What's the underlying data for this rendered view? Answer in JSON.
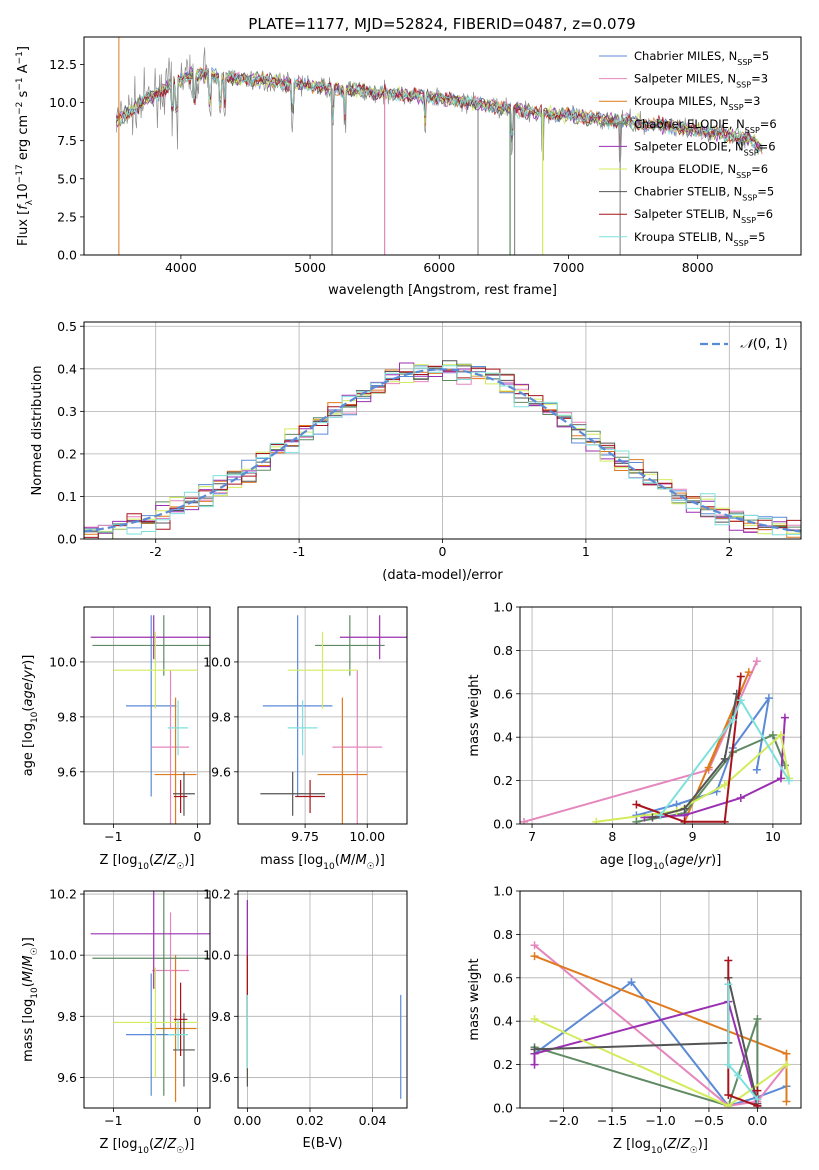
{
  "title": "PLATE=1177, MJD=52824, FIBERID=0487, z=0.079",
  "colors": {
    "Chabrier MILES": "#5b8bd6",
    "Salpeter MILES": "#e586bd",
    "Kroupa MILES": "#e07a1f",
    "Chabrier ELODIE": "#5f8a63",
    "Salpeter ELODIE": "#9b2fb2",
    "Kroupa ELODIE": "#d2ec5c",
    "Chabrier STELIB": "#555555",
    "Salpeter STELIB": "#a8141c",
    "Kroupa STELIB": "#7ee0dd"
  },
  "chart_data": [
    {
      "id": "spectrum",
      "type": "line",
      "xlabel": "wavelength [Angstrom, rest frame]",
      "ylabel": "Flux [f_λ 10^-17 erg cm^-2 s^-1 A^-1]",
      "xlim": [
        3250,
        8800
      ],
      "ylim": [
        0,
        14.3
      ],
      "xticks": [
        4000,
        5000,
        6000,
        7000,
        8000
      ],
      "yticks": [
        0.0,
        2.5,
        5.0,
        7.5,
        10.0,
        12.5
      ],
      "ytick_labels": [
        "0.0",
        "2.5",
        "5.0",
        "7.5",
        "10.0",
        "12.5"
      ],
      "legend_position": "top-right",
      "legend": [
        {
          "base": "Chabrier MILES, N",
          "sub": "SSP",
          "tail": "=5",
          "color_key": "Chabrier MILES"
        },
        {
          "base": "Salpeter MILES, N",
          "sub": "SSP",
          "tail": "=3",
          "color_key": "Salpeter MILES"
        },
        {
          "base": "Kroupa MILES, N",
          "sub": "SSP",
          "tail": "=3",
          "color_key": "Kroupa MILES"
        },
        {
          "base": "Chabrier ELODIE, N",
          "sub": "SSP",
          "tail": "=6",
          "color_key": "Chabrier ELODIE"
        },
        {
          "base": "Salpeter ELODIE, N",
          "sub": "SSP",
          "tail": "=6",
          "color_key": "Salpeter ELODIE"
        },
        {
          "base": "Kroupa ELODIE, N",
          "sub": "SSP",
          "tail": "=6",
          "color_key": "Kroupa ELODIE"
        },
        {
          "base": "Chabrier STELIB, N",
          "sub": "SSP",
          "tail": "=5",
          "color_key": "Chabrier STELIB"
        },
        {
          "base": "Salpeter STELIB, N",
          "sub": "SSP",
          "tail": "=6",
          "color_key": "Salpeter STELIB"
        },
        {
          "base": "Kroupa STELIB, N",
          "sub": "SSP",
          "tail": "=5",
          "color_key": "Kroupa STELIB"
        }
      ],
      "continuum": [
        [
          3500,
          8.8
        ],
        [
          3700,
          10.0
        ],
        [
          3900,
          11.0
        ],
        [
          4100,
          11.9
        ],
        [
          4400,
          11.6
        ],
        [
          4800,
          11.3
        ],
        [
          5200,
          10.9
        ],
        [
          5600,
          10.6
        ],
        [
          6000,
          10.3
        ],
        [
          6400,
          9.8
        ],
        [
          6800,
          9.3
        ],
        [
          7200,
          9.0
        ],
        [
          7600,
          8.6
        ],
        [
          8000,
          8.2
        ],
        [
          8400,
          7.6
        ],
        [
          8500,
          7.0
        ]
      ],
      "absorption_lines": [
        3934,
        3969,
        4102,
        4227,
        4305,
        4340,
        4861,
        5175,
        5270,
        5890,
        6563,
        6800,
        7400
      ],
      "spike_lines": [
        5170,
        5577,
        6300,
        6548,
        6583,
        6800,
        7400
      ]
    },
    {
      "id": "residuals",
      "type": "histogram",
      "xlabel": "(data-model)/error",
      "ylabel": "Normed distribution",
      "xlim": [
        -2.5,
        2.5
      ],
      "ylim": [
        0,
        0.51
      ],
      "xticks": [
        -2,
        -1,
        0,
        1,
        2
      ],
      "yticks": [
        0.0,
        0.1,
        0.2,
        0.3,
        0.4,
        0.5
      ],
      "ytick_labels": [
        "0.0",
        "0.1",
        "0.2",
        "0.3",
        "0.4",
        "0.5"
      ],
      "bin_width": 0.1,
      "reference_curve": "gaussian mean 0 sigma 1",
      "legend_label_math": "N(0, 1)",
      "legend_position": "top-right"
    },
    {
      "id": "age-vs-Z",
      "type": "errorbar",
      "xlabel": "Z [log10(Z/Z☉)]",
      "ylabel": "age  [log10(age/yr)]",
      "xlim": [
        -1.35,
        0.15
      ],
      "ylim": [
        9.41,
        10.2
      ],
      "xticks": [
        -1,
        0
      ],
      "xtick_labels": [
        "−1",
        "0"
      ],
      "yticks": [
        9.6,
        9.8,
        10.0
      ],
      "ytick_labels": [
        "9.6",
        "9.8",
        "10.0"
      ],
      "points": [
        {
          "x": -0.55,
          "xerr": 0.3,
          "y": 9.84,
          "yerr": 0.33,
          "color_key": "Chabrier MILES"
        },
        {
          "x": -0.32,
          "xerr": 0.22,
          "y": 9.69,
          "yerr": 0.28,
          "color_key": "Salpeter MILES"
        },
        {
          "x": -0.26,
          "xerr": 0.25,
          "y": 9.59,
          "yerr": 0.28,
          "color_key": "Kroupa MILES"
        },
        {
          "x": -0.4,
          "xerr": 0.85,
          "y": 10.06,
          "yerr": 0.11,
          "color_key": "Chabrier ELODIE"
        },
        {
          "x": -0.52,
          "xerr": 0.75,
          "y": 10.09,
          "yerr": 0.08,
          "color_key": "Salpeter ELODIE"
        },
        {
          "x": -0.5,
          "xerr": 0.5,
          "y": 9.97,
          "yerr": 0.14,
          "color_key": "Kroupa ELODIE"
        },
        {
          "x": -0.16,
          "xerr": 0.13,
          "y": 9.52,
          "yerr": 0.08,
          "color_key": "Chabrier STELIB"
        },
        {
          "x": -0.2,
          "xerr": 0.08,
          "y": 9.51,
          "yerr": 0.06,
          "color_key": "Salpeter STELIB"
        },
        {
          "x": -0.23,
          "xerr": 0.12,
          "y": 9.76,
          "yerr": 0.1,
          "color_key": "Kroupa STELIB"
        }
      ]
    },
    {
      "id": "age-vs-mass",
      "type": "errorbar",
      "xlabel": "mass [log10(M/M☉)]",
      "ylabel": "",
      "xlim": [
        9.48,
        10.16
      ],
      "ylim": [
        9.41,
        10.2
      ],
      "xticks": [
        9.75,
        10.0
      ],
      "xtick_labels": [
        "9.75",
        "10.00"
      ],
      "yticks": [
        9.6,
        9.8,
        10.0
      ],
      "ytick_labels": [
        "9.6",
        "9.8",
        "10.0"
      ],
      "points": [
        {
          "x": 9.72,
          "xerr": 0.14,
          "y": 9.84,
          "yerr": 0.33,
          "color_key": "Chabrier MILES"
        },
        {
          "x": 9.96,
          "xerr": 0.1,
          "y": 9.69,
          "yerr": 0.28,
          "color_key": "Salpeter MILES"
        },
        {
          "x": 9.9,
          "xerr": 0.1,
          "y": 9.59,
          "yerr": 0.28,
          "color_key": "Kroupa MILES"
        },
        {
          "x": 9.93,
          "xerr": 0.14,
          "y": 10.06,
          "yerr": 0.11,
          "color_key": "Chabrier ELODIE"
        },
        {
          "x": 10.05,
          "xerr": 0.16,
          "y": 10.09,
          "yerr": 0.08,
          "color_key": "Salpeter ELODIE"
        },
        {
          "x": 9.82,
          "xerr": 0.14,
          "y": 9.97,
          "yerr": 0.14,
          "color_key": "Kroupa ELODIE"
        },
        {
          "x": 9.7,
          "xerr": 0.13,
          "y": 9.52,
          "yerr": 0.08,
          "color_key": "Chabrier STELIB"
        },
        {
          "x": 9.77,
          "xerr": 0.06,
          "y": 9.51,
          "yerr": 0.06,
          "color_key": "Salpeter STELIB"
        },
        {
          "x": 9.74,
          "xerr": 0.06,
          "y": 9.76,
          "yerr": 0.1,
          "color_key": "Kroupa STELIB"
        }
      ]
    },
    {
      "id": "weight-vs-age",
      "type": "line",
      "xlabel": "age  [log10(age/yr)]",
      "ylabel": "mass weight",
      "xlim": [
        6.85,
        10.35
      ],
      "ylim": [
        0,
        1.0
      ],
      "xticks": [
        7,
        8,
        9,
        10
      ],
      "xtick_labels": [
        "7",
        "8",
        "9",
        "10"
      ],
      "yticks": [
        0.0,
        0.2,
        0.4,
        0.6,
        0.8,
        1.0
      ],
      "ytick_labels": [
        "0.0",
        "0.2",
        "0.4",
        "0.6",
        "0.8",
        "1.0"
      ],
      "series": [
        {
          "color_key": "Chabrier MILES",
          "points": [
            [
              8.3,
              0.04
            ],
            [
              8.8,
              0.09
            ],
            [
              9.3,
              0.15
            ],
            [
              9.5,
              0.35
            ],
            [
              9.95,
              0.58
            ],
            [
              9.8,
              0.25
            ]
          ]
        },
        {
          "color_key": "Salpeter MILES",
          "points": [
            [
              6.9,
              0.01
            ],
            [
              9.2,
              0.25
            ],
            [
              9.8,
              0.75
            ]
          ]
        },
        {
          "color_key": "Kroupa MILES",
          "points": [
            [
              9.2,
              0.26
            ],
            [
              9.7,
              0.7
            ],
            [
              8.9,
              0.01
            ]
          ]
        },
        {
          "color_key": "Chabrier ELODIE",
          "points": [
            [
              8.3,
              0.01
            ],
            [
              8.9,
              0.05
            ],
            [
              9.5,
              0.33
            ],
            [
              10.0,
              0.41
            ],
            [
              10.15,
              0.27
            ]
          ]
        },
        {
          "color_key": "Salpeter ELODIE",
          "points": [
            [
              8.4,
              0.03
            ],
            [
              8.9,
              0.04
            ],
            [
              9.6,
              0.12
            ],
            [
              10.1,
              0.21
            ],
            [
              10.15,
              0.49
            ]
          ]
        },
        {
          "color_key": "Kroupa ELODIE",
          "points": [
            [
              7.8,
              0.01
            ],
            [
              8.8,
              0.06
            ],
            [
              9.4,
              0.18
            ],
            [
              10.1,
              0.41
            ],
            [
              10.2,
              0.21
            ]
          ]
        },
        {
          "color_key": "Chabrier STELIB",
          "points": [
            [
              8.5,
              0.03
            ],
            [
              8.9,
              0.07
            ],
            [
              9.4,
              0.3
            ],
            [
              9.55,
              0.6
            ]
          ]
        },
        {
          "color_key": "Salpeter STELIB",
          "points": [
            [
              8.3,
              0.09
            ],
            [
              8.9,
              0.01
            ],
            [
              9.4,
              0.01
            ],
            [
              9.6,
              0.68
            ]
          ]
        },
        {
          "color_key": "Kroupa STELIB",
          "points": [
            [
              8.6,
              0.04
            ],
            [
              9.5,
              0.48
            ],
            [
              9.6,
              0.57
            ],
            [
              10.2,
              0.2
            ]
          ]
        }
      ]
    },
    {
      "id": "mass-vs-Z",
      "type": "errorbar",
      "xlabel": "Z [log10(Z/Z☉)]",
      "ylabel": "mass [log10(M/M☉)]",
      "xlim": [
        -1.35,
        0.15
      ],
      "ylim": [
        9.5,
        10.21
      ],
      "xticks": [
        -1,
        0
      ],
      "xtick_labels": [
        "−1",
        "0"
      ],
      "yticks": [
        9.6,
        9.8,
        10.0,
        10.2
      ],
      "ytick_labels": [
        "9.6",
        "9.8",
        "10.0",
        "10.2"
      ],
      "points": [
        {
          "x": -0.55,
          "xerr": 0.3,
          "y": 9.74,
          "yerr": 0.2,
          "color_key": "Chabrier MILES"
        },
        {
          "x": -0.32,
          "xerr": 0.22,
          "y": 9.95,
          "yerr": 0.19,
          "color_key": "Salpeter MILES"
        },
        {
          "x": -0.26,
          "xerr": 0.25,
          "y": 9.76,
          "yerr": 0.24,
          "color_key": "Kroupa MILES"
        },
        {
          "x": -0.4,
          "xerr": 0.85,
          "y": 9.99,
          "yerr": 0.45,
          "color_key": "Chabrier ELODIE"
        },
        {
          "x": -0.52,
          "xerr": 0.75,
          "y": 10.07,
          "yerr": 0.18,
          "color_key": "Salpeter ELODIE"
        },
        {
          "x": -0.5,
          "xerr": 0.5,
          "y": 9.78,
          "yerr": 0.18,
          "color_key": "Kroupa ELODIE"
        },
        {
          "x": -0.16,
          "xerr": 0.13,
          "y": 9.69,
          "yerr": 0.12,
          "color_key": "Chabrier STELIB"
        },
        {
          "x": -0.2,
          "xerr": 0.08,
          "y": 9.79,
          "yerr": 0.12,
          "color_key": "Salpeter STELIB"
        },
        {
          "x": -0.23,
          "xerr": 0.12,
          "y": 9.74,
          "yerr": 0.05,
          "color_key": "Kroupa STELIB"
        }
      ]
    },
    {
      "id": "mass-vs-ebv",
      "type": "errorbar",
      "xlabel": "E(B-V)",
      "ylabel": "",
      "xlim": [
        -0.003,
        0.051
      ],
      "ylim": [
        9.5,
        10.21
      ],
      "xticks": [
        0.0,
        0.02,
        0.04
      ],
      "xtick_labels": [
        "0.00",
        "0.02",
        "0.04"
      ],
      "yticks": [
        9.6,
        9.8,
        10.0,
        10.2
      ],
      "ytick_labels": [
        "9.6",
        "9.8",
        "10.0",
        "10.2"
      ],
      "points": [
        {
          "x": 0.049,
          "xerr": 0,
          "y": 9.7,
          "yerr": 0.17,
          "color_key": "Chabrier MILES"
        },
        {
          "x": 0.0,
          "xerr": 0,
          "y": 9.9,
          "yerr": 0.16,
          "color_key": "Salpeter MILES"
        },
        {
          "x": 0.0,
          "xerr": 0,
          "y": 9.82,
          "yerr": 0.2,
          "color_key": "Kroupa MILES"
        },
        {
          "x": 0.0,
          "xerr": 0,
          "y": 9.95,
          "yerr": 0.23,
          "color_key": "Chabrier ELODIE"
        },
        {
          "x": 0.0,
          "xerr": 0,
          "y": 9.98,
          "yerr": 0.2,
          "color_key": "Salpeter ELODIE"
        },
        {
          "x": 0.0,
          "xerr": 0,
          "y": 9.78,
          "yerr": 0.2,
          "color_key": "Kroupa ELODIE"
        },
        {
          "x": 0.0,
          "xerr": 0,
          "y": 9.72,
          "yerr": 0.15,
          "color_key": "Chabrier STELIB"
        },
        {
          "x": 0.0,
          "xerr": 0,
          "y": 9.9,
          "yerr": 0.1,
          "color_key": "Salpeter STELIB"
        },
        {
          "x": 0.0,
          "xerr": 0,
          "y": 9.75,
          "yerr": 0.12,
          "color_key": "Kroupa STELIB"
        }
      ]
    },
    {
      "id": "weight-vs-Z",
      "type": "line",
      "xlabel": "Z [log10(Z/Z☉)]",
      "ylabel": "mass weight",
      "xlim": [
        -2.45,
        0.45
      ],
      "ylim": [
        0,
        1.0
      ],
      "xticks": [
        -2.0,
        -1.5,
        -1.0,
        -0.5,
        0.0
      ],
      "xtick_labels": [
        "−2.0",
        "−1.5",
        "−1.0",
        "−0.5",
        "0.0"
      ],
      "yticks": [
        0.0,
        0.2,
        0.4,
        0.6,
        0.8,
        1.0
      ],
      "ytick_labels": [
        "0.0",
        "0.2",
        "0.4",
        "0.6",
        "0.8",
        "1.0"
      ],
      "series": [
        {
          "color_key": "Chabrier MILES",
          "points": [
            [
              -2.3,
              0.25
            ],
            [
              -1.3,
              0.58
            ],
            [
              -0.3,
              0.01
            ],
            [
              0.0,
              0.05
            ],
            [
              0.3,
              0.1
            ]
          ]
        },
        {
          "color_key": "Salpeter MILES",
          "points": [
            [
              -2.3,
              0.75
            ],
            [
              -0.3,
              0.01
            ],
            [
              0.0,
              0.03
            ],
            [
              0.3,
              0.2
            ]
          ]
        },
        {
          "color_key": "Kroupa MILES",
          "points": [
            [
              -2.3,
              0.7
            ],
            [
              0.3,
              0.25
            ],
            [
              0.3,
              0.03
            ]
          ]
        },
        {
          "color_key": "Chabrier ELODIE",
          "points": [
            [
              -2.3,
              0.28
            ],
            [
              -0.3,
              0.01
            ],
            [
              0.0,
              0.41
            ],
            [
              0.0,
              0.01
            ]
          ]
        },
        {
          "color_key": "Salpeter ELODIE",
          "points": [
            [
              -2.3,
              0.2
            ],
            [
              -2.3,
              0.25
            ],
            [
              -0.3,
              0.49
            ],
            [
              0.0,
              0.01
            ]
          ]
        },
        {
          "color_key": "Kroupa ELODIE",
          "points": [
            [
              -2.3,
              0.41
            ],
            [
              -0.3,
              0.01
            ],
            [
              0.3,
              0.2
            ]
          ]
        },
        {
          "color_key": "Chabrier STELIB",
          "points": [
            [
              -2.3,
              0.27
            ],
            [
              -0.3,
              0.3
            ],
            [
              -0.3,
              0.6
            ],
            [
              0.0,
              0.02
            ]
          ]
        },
        {
          "color_key": "Salpeter STELIB",
          "points": [
            [
              -0.3,
              0.68
            ],
            [
              -0.3,
              0.06
            ],
            [
              0.0,
              0.01
            ],
            [
              0.0,
              0.08
            ]
          ]
        },
        {
          "color_key": "Kroupa STELIB",
          "points": [
            [
              -0.3,
              0.57
            ],
            [
              -0.3,
              0.2
            ],
            [
              -0.2,
              0.15
            ],
            [
              0.0,
              0.04
            ]
          ]
        }
      ]
    }
  ]
}
